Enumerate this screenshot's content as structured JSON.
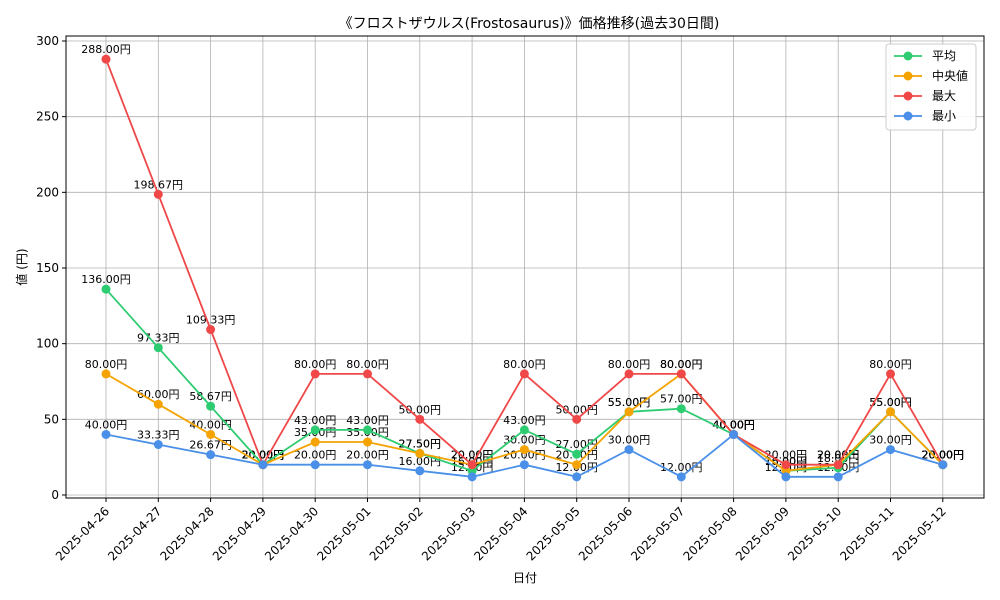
{
  "chart_data": {
    "type": "line",
    "title": "《フロストザウルス(Frostosaurus)》価格推移(過去30日間)",
    "xlabel": "日付",
    "ylabel": "値 (円)",
    "ylim": [
      0,
      300
    ],
    "yticks": [
      0,
      50,
      100,
      150,
      200,
      250,
      300
    ],
    "grid": true,
    "legend_position": "top-right",
    "categories": [
      "2025-04-26",
      "2025-04-27",
      "2025-04-28",
      "2025-04-29",
      "2025-04-30",
      "2025-05-01",
      "2025-05-02",
      "2025-05-03",
      "2025-05-04",
      "2025-05-05",
      "2025-05-06",
      "2025-05-07",
      "2025-05-08",
      "2025-05-09",
      "2025-05-10",
      "2025-05-11",
      "2025-05-12"
    ],
    "series": [
      {
        "name": "平均",
        "color": "#2ecc71",
        "values": [
          136.0,
          97.33,
          58.67,
          20.0,
          43.0,
          43.0,
          27.5,
          16.0,
          43.0,
          27.0,
          55.0,
          57.0,
          40.0,
          16.0,
          18.0,
          55.0,
          20.0
        ]
      },
      {
        "name": "中央値",
        "color": "#f5a300",
        "values": [
          80.0,
          60.0,
          40.0,
          20.0,
          35.0,
          35.0,
          27.5,
          20.0,
          30.0,
          20.0,
          55.0,
          80.0,
          40.0,
          16.0,
          20.0,
          55.0,
          20.0
        ]
      },
      {
        "name": "最大",
        "color": "#f04848",
        "values": [
          288.0,
          198.67,
          109.33,
          20.0,
          80.0,
          80.0,
          50.0,
          20.0,
          80.0,
          50.0,
          80.0,
          80.0,
          40.0,
          20.0,
          20.0,
          80.0,
          20.0
        ]
      },
      {
        "name": "最小",
        "color": "#4a90e8",
        "values": [
          40.0,
          33.33,
          26.67,
          20.0,
          20.0,
          20.0,
          16.0,
          12.0,
          20.0,
          12.0,
          30.0,
          12.0,
          40.0,
          12.0,
          12.0,
          30.0,
          20.0
        ]
      }
    ],
    "value_suffix": "円"
  }
}
